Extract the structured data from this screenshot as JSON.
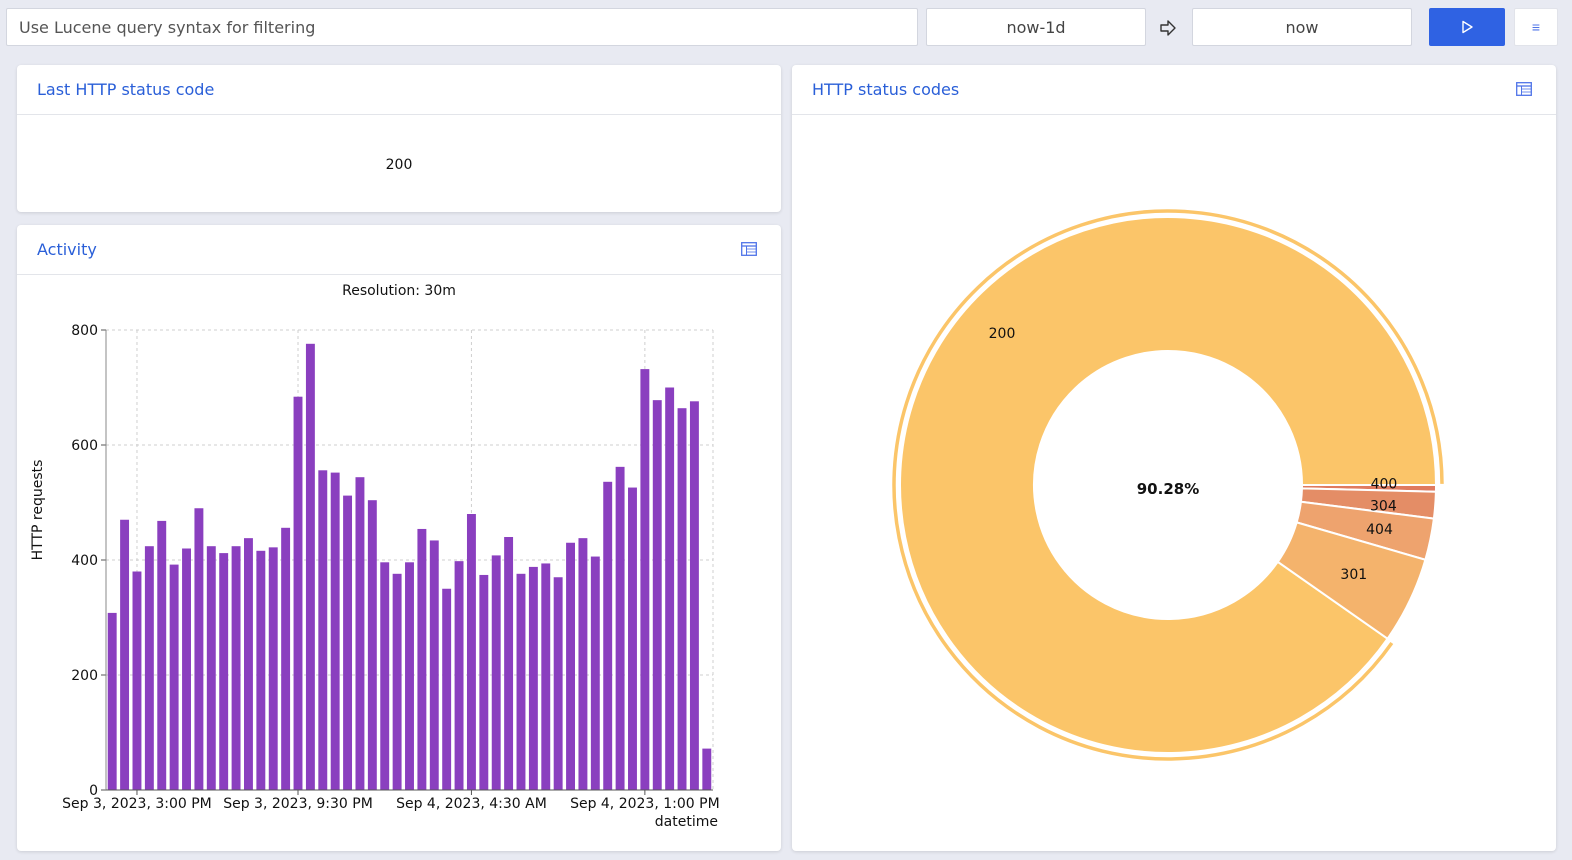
{
  "toolbar": {
    "query_placeholder": "Use Lucene query syntax for filtering",
    "time_from": "now-1d",
    "time_to": "now",
    "arrow_icon": "arrow-right-icon",
    "run_icon": "play-icon",
    "menu_label": "≡"
  },
  "panels": {
    "status": {
      "title": "Last HTTP status code",
      "value": "200"
    },
    "activity": {
      "title": "Activity",
      "resolution": "Resolution: 30m"
    },
    "codes": {
      "title": "HTTP status codes",
      "center_label": "90.28%"
    }
  },
  "chart_data": [
    {
      "type": "bar",
      "title": "Resolution: 30m",
      "xlabel": "datetime",
      "ylabel": "HTTP requests",
      "ylim": [
        0,
        800
      ],
      "yticks": [
        0,
        200,
        400,
        600,
        800
      ],
      "xtick_labels": [
        "Sep 3, 2023, 3:00 PM",
        "Sep 3, 2023, 9:30 PM",
        "Sep 4, 2023, 4:30 AM",
        "Sep 4, 2023, 1:00 PM"
      ],
      "grid": true,
      "color": "#8a3fbf",
      "values": [
        308,
        470,
        380,
        424,
        468,
        392,
        420,
        490,
        424,
        412,
        424,
        438,
        416,
        422,
        456,
        684,
        776,
        556,
        552,
        512,
        544,
        504,
        396,
        376,
        396,
        454,
        434,
        350,
        398,
        480,
        374,
        408,
        440,
        376,
        388,
        394,
        370,
        430,
        438,
        406,
        536,
        562,
        526,
        732,
        678,
        700,
        664,
        676,
        72
      ]
    },
    {
      "type": "pie",
      "center_label": "90.28%",
      "labels": [
        "200",
        "400",
        "304",
        "404",
        "301"
      ],
      "values": [
        90.28,
        0.4,
        1.6,
        2.5,
        5.22
      ],
      "colors": [
        "#fbc569",
        "#e07a5f",
        "#e48d66",
        "#eea36e",
        "#f4b36c"
      ]
    }
  ]
}
